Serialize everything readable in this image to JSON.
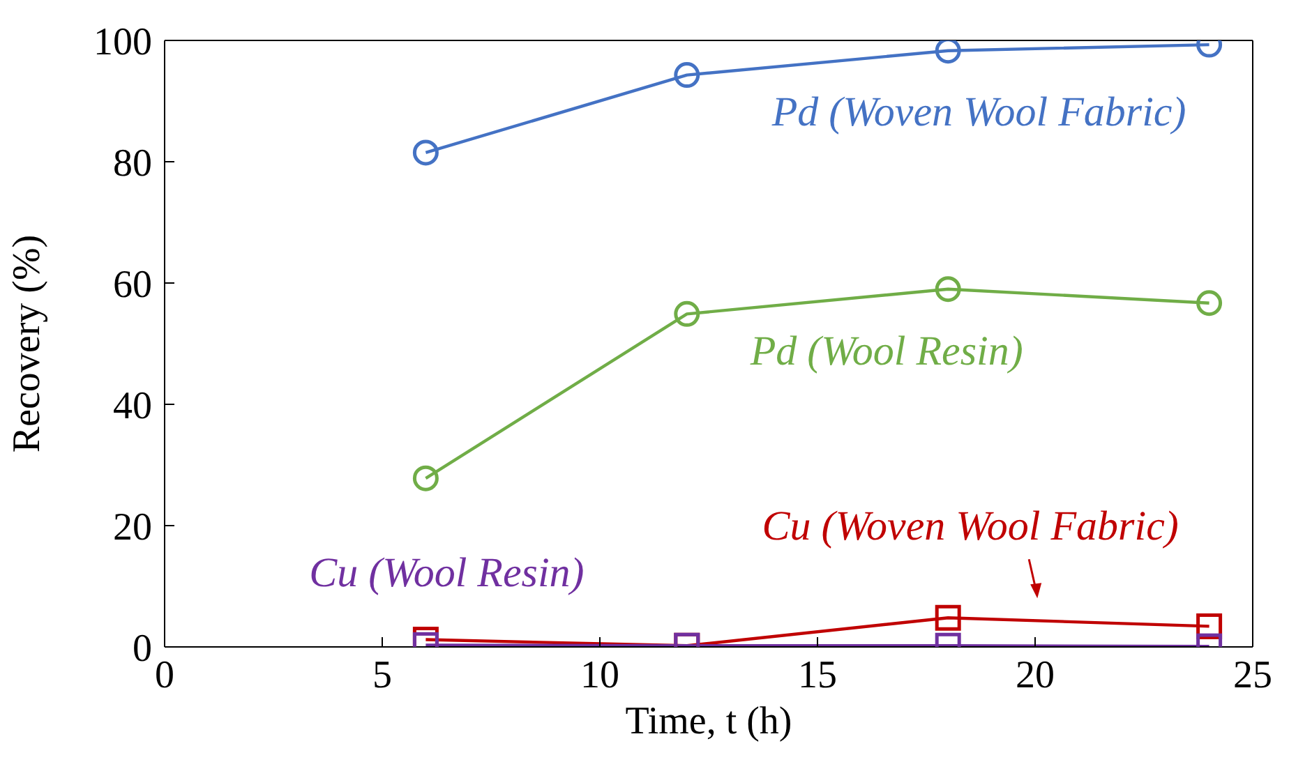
{
  "chart_data": {
    "type": "line",
    "xlabel": "Time, t (h)",
    "ylabel": "Recovery (%)",
    "xlim": [
      0,
      25
    ],
    "xticks": [
      0,
      5,
      10,
      15,
      20,
      25
    ],
    "ylim": [
      0,
      100
    ],
    "yticks": [
      0,
      20,
      40,
      60,
      80,
      100
    ],
    "x": [
      6,
      12,
      18,
      24
    ],
    "series": [
      {
        "name": "Pd (Woven Wool Fabric)",
        "color": "#4472c4",
        "marker": "circle",
        "values": [
          81.5,
          94.3,
          98.3,
          99.3
        ]
      },
      {
        "name": "Pd (Wool Resin)",
        "color": "#70ad47",
        "marker": "circle",
        "values": [
          27.8,
          54.9,
          59.0,
          56.7
        ]
      },
      {
        "name": "Cu (Woven Wool Fabric)",
        "color": "#c00000",
        "marker": "square",
        "values": [
          1.2,
          0.2,
          4.8,
          3.4
        ]
      },
      {
        "name": "Cu (Wool Resin)",
        "color": "#7030a0",
        "marker": "square",
        "values": [
          0.3,
          0.2,
          0.2,
          0.1
        ]
      }
    ]
  }
}
